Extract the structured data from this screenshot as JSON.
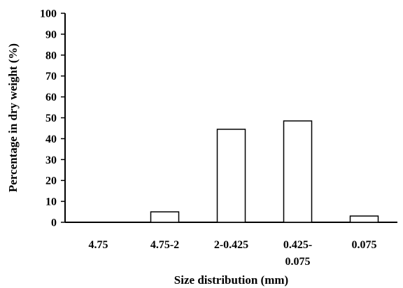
{
  "chart_data": {
    "type": "bar",
    "categories": [
      [
        "4.75"
      ],
      [
        "4.75-2"
      ],
      [
        "2-0.425"
      ],
      [
        "0.425-",
        "0.075"
      ],
      [
        "0.075"
      ]
    ],
    "values": [
      0,
      5,
      44.5,
      48.5,
      3
    ],
    "xlabel": "Size distribution (mm)",
    "ylabel": "Percentage in dry weight (%)",
    "ylim": [
      0,
      100
    ],
    "yticks": [
      0,
      10,
      20,
      30,
      40,
      50,
      60,
      70,
      80,
      90,
      100
    ],
    "grid": false,
    "legend": "none",
    "colors": {
      "bar_fill": "#ffffff",
      "bar_stroke": "#000000",
      "axis": "#000000"
    }
  }
}
